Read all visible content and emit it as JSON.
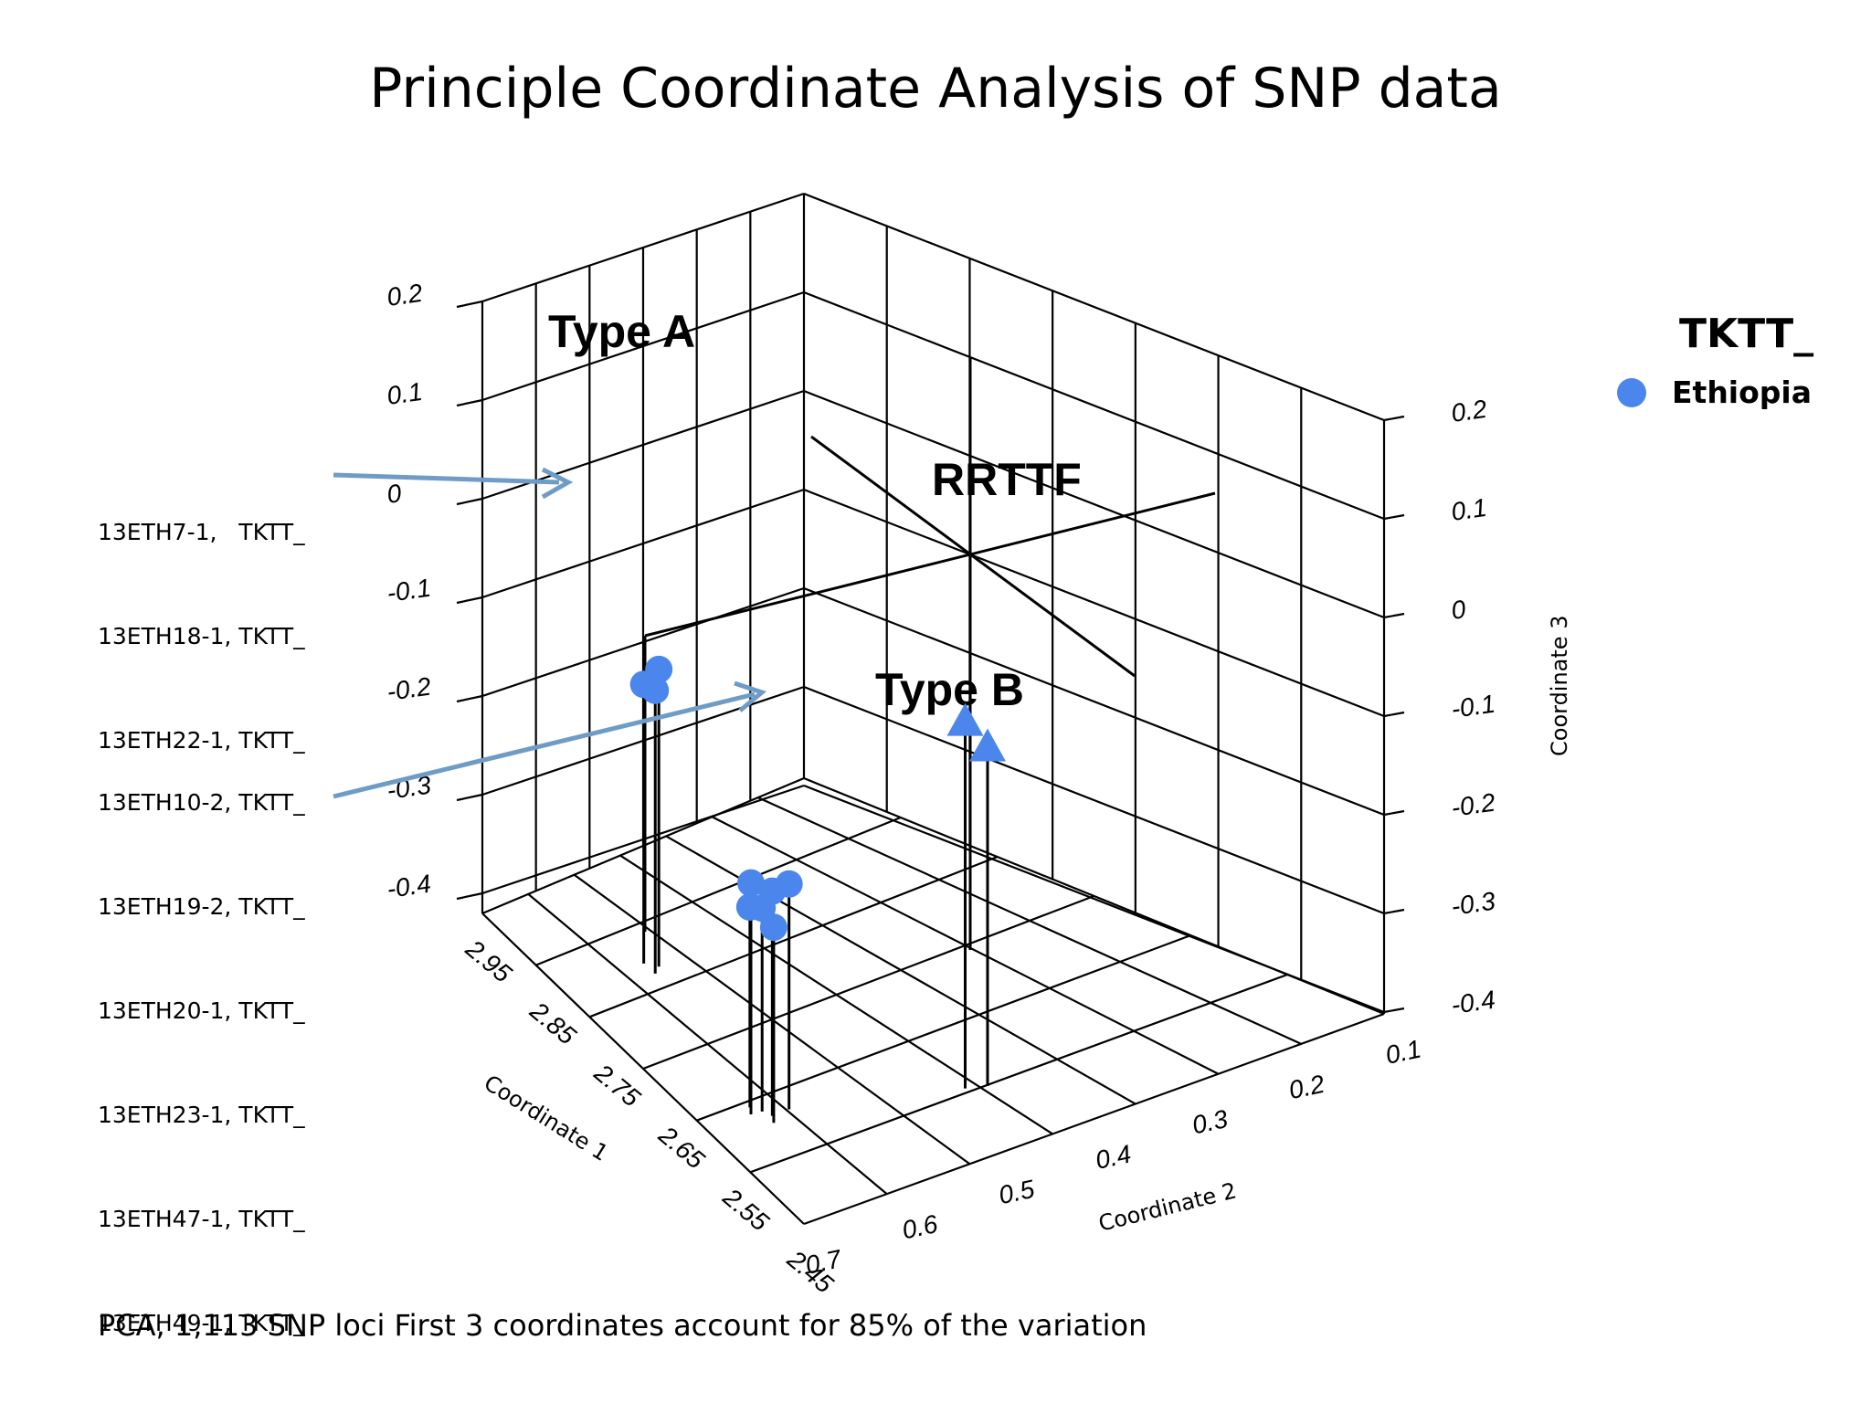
{
  "title": "Principle Coordinate Analysis of SNP data",
  "footer": "PCA, 1,113 SNP loci First 3 coordinates account for 85% of the variation",
  "legend": {
    "title": "TKTT_",
    "entries": [
      {
        "label": "Ethiopia",
        "color": "#4b86ec",
        "marker": "circle"
      }
    ]
  },
  "callouts": {
    "group_a": [
      "13ETH7-1,   TKTT_",
      "13ETH18-1, TKTT_",
      "13ETH22-1, TKTT_"
    ],
    "group_b": [
      "13ETH10-2, TKTT_",
      "13ETH19-2, TKTT_",
      "13ETH20-1, TKTT_",
      "13ETH23-1, TKTT_",
      "13ETH47-1, TKTT_",
      "13ETH49-1, TKTT_"
    ]
  },
  "colors": {
    "points": "#4b86ec",
    "arrow": "#6f9cc6"
  },
  "chart_data": {
    "type": "scatter",
    "title": "Principle Coordinate Analysis of SNP data",
    "dimensions": 3,
    "axes": {
      "x": {
        "label": "Coordinate 1",
        "ticks": [
          "2.95",
          "2.85",
          "2.75",
          "2.65",
          "2.55",
          "2.45"
        ]
      },
      "y": {
        "label": "Coordinate 2",
        "ticks": [
          "0.7",
          "0.6",
          "0.5",
          "0.4",
          "0.3",
          "0.2",
          "0.1"
        ]
      },
      "z": {
        "label": "Coordinate 3",
        "ticks_left": [
          "0.2",
          "0.1",
          "0",
          "-0.1",
          "-0.2",
          "-0.3",
          "-0.4"
        ],
        "ticks_right": [
          "0.2",
          "0.1",
          "0",
          "-0.1",
          "-0.2",
          "-0.3",
          "-0.4"
        ]
      }
    },
    "annotations": [
      "Type A",
      "RRTTF",
      "Type B"
    ],
    "grid": true,
    "legend_position": "top-right",
    "series": [
      {
        "name": "Type A (Ethiopia, TKTT_)",
        "marker": "circle",
        "points": [
          {
            "c1": 2.88,
            "c2": 0.75,
            "c3": 0.0
          },
          {
            "c1": 2.87,
            "c2": 0.75,
            "c3": -0.01
          },
          {
            "c1": 2.88,
            "c2": 0.74,
            "c3": 0.01
          }
        ]
      },
      {
        "name": "Type B (Ethiopia, TKTT_)",
        "marker": "circle",
        "points": [
          {
            "c1": 2.7,
            "c2": 0.7,
            "c3": -0.17
          },
          {
            "c1": 2.69,
            "c2": 0.69,
            "c3": -0.19
          },
          {
            "c1": 2.71,
            "c2": 0.71,
            "c3": -0.2
          },
          {
            "c1": 2.68,
            "c2": 0.68,
            "c3": -0.22
          },
          {
            "c1": 2.69,
            "c2": 0.68,
            "c3": -0.18
          },
          {
            "c1": 2.7,
            "c2": 0.69,
            "c3": -0.21
          }
        ]
      },
      {
        "name": "RRTTF",
        "marker": "triangle",
        "points": [
          {
            "c1": 2.58,
            "c2": 0.7,
            "c3": 0.02
          },
          {
            "c1": 2.57,
            "c2": 0.69,
            "c3": 0.01
          }
        ]
      }
    ]
  }
}
